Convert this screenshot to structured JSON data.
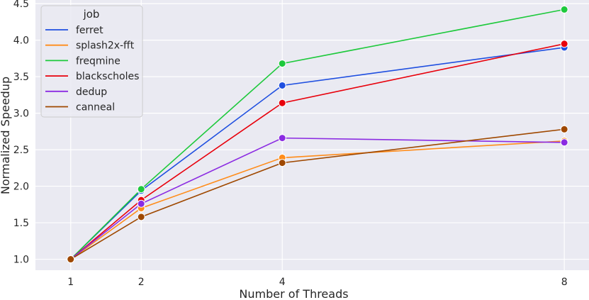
{
  "chart_data": {
    "type": "line",
    "title": "",
    "xlabel": "Number of Threads",
    "ylabel": "Normalized Speedup",
    "x": [
      1,
      2,
      4,
      8
    ],
    "x_ticks": [
      "1",
      "2",
      "4",
      "8"
    ],
    "y_ticks": [
      "1.0",
      "1.5",
      "2.0",
      "2.5",
      "3.0",
      "3.5",
      "4.0",
      "4.5"
    ],
    "ylim": [
      0.85,
      4.55
    ],
    "xlim": [
      0.5,
      8.35
    ],
    "grid": true,
    "background": "#eaeaf2",
    "legend": {
      "title": "job",
      "placement": "top-left"
    },
    "series": [
      {
        "name": "ferret",
        "color": "#1f4fe0",
        "values": [
          1.0,
          1.94,
          3.38,
          3.9
        ]
      },
      {
        "name": "splash2x-fft",
        "color": "#ff8c1a",
        "values": [
          1.0,
          1.7,
          2.39,
          2.62
        ]
      },
      {
        "name": "freqmine",
        "color": "#1ec93c",
        "values": [
          1.0,
          1.96,
          3.68,
          4.42
        ]
      },
      {
        "name": "blackscholes",
        "color": "#e8000b",
        "values": [
          1.0,
          1.81,
          3.14,
          3.95
        ]
      },
      {
        "name": "dedup",
        "color": "#8b2be2",
        "values": [
          1.0,
          1.76,
          2.66,
          2.6
        ]
      },
      {
        "name": "canneal",
        "color": "#9f4800",
        "values": [
          1.0,
          1.58,
          2.32,
          2.78
        ]
      }
    ]
  }
}
